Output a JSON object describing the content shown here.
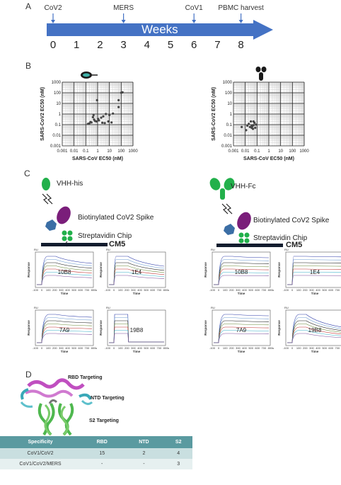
{
  "panels": {
    "a": "A",
    "b": "B",
    "c": "C",
    "d": "D"
  },
  "timeline": {
    "axis_label": "Weeks",
    "week_numbers": [
      "0",
      "1",
      "2",
      "3",
      "4",
      "5",
      "6",
      "7",
      "8"
    ],
    "events": [
      {
        "label": "CoV2",
        "week": 0
      },
      {
        "label": "MERS",
        "week": 3
      },
      {
        "label": "CoV1",
        "week": 6
      },
      {
        "label": "PBMC harvest",
        "week": 8
      }
    ],
    "bar_color": "#4472c4"
  },
  "chart_data": [
    {
      "type": "scatter",
      "xlabel": "SARS-CoV EC50 (nM)",
      "ylabel": "SARS-CoV2 EC50 (nM)",
      "xscale": "log",
      "yscale": "log",
      "xlim": [
        0.001,
        1000
      ],
      "ylim": [
        0.001,
        1000
      ],
      "xticks": [
        "0.001",
        "0.01",
        "0.1",
        "1",
        "10",
        "100",
        "1000"
      ],
      "yticks": [
        "0.001",
        "0.01",
        "0.1",
        "1",
        "10",
        "100",
        "1000"
      ],
      "grid": true,
      "points": [
        [
          0.15,
          0.12
        ],
        [
          0.2,
          0.13
        ],
        [
          0.25,
          0.18
        ],
        [
          0.3,
          0.16
        ],
        [
          0.4,
          0.5
        ],
        [
          0.45,
          0.8
        ],
        [
          0.5,
          0.3
        ],
        [
          0.6,
          0.22
        ],
        [
          0.8,
          0.2
        ],
        [
          0.9,
          20
        ],
        [
          1.1,
          0.35
        ],
        [
          1.3,
          0.25
        ],
        [
          2,
          0.45
        ],
        [
          2.5,
          0.15
        ],
        [
          3,
          0.6
        ],
        [
          4,
          0.14
        ],
        [
          5,
          1
        ],
        [
          8,
          0.2
        ],
        [
          10,
          0.8
        ],
        [
          15,
          0.16
        ],
        [
          20,
          1.1
        ],
        [
          60,
          4.5
        ],
        [
          60,
          20
        ],
        [
          100,
          100
        ],
        [
          130,
          110
        ]
      ]
    },
    {
      "type": "scatter",
      "xlabel": "SARS-CoV EC50 (nM)",
      "ylabel": "SARS-CoV2 EC50 (nM)",
      "xscale": "log",
      "yscale": "log",
      "xlim": [
        0.001,
        1000
      ],
      "ylim": [
        0.001,
        1000
      ],
      "xticks": [
        "0.001",
        "0.01",
        "0.1",
        "1",
        "10",
        "100",
        "1000"
      ],
      "yticks": [
        "0.001",
        "0.01",
        "0.1",
        "1",
        "10",
        "100",
        "1000"
      ],
      "grid": true,
      "points": [
        [
          0.005,
          0.06
        ],
        [
          0.012,
          0.03
        ],
        [
          0.015,
          0.08
        ],
        [
          0.02,
          0.12
        ],
        [
          0.025,
          0.06
        ],
        [
          0.03,
          0.2
        ],
        [
          0.035,
          0.05
        ],
        [
          0.04,
          0.07
        ],
        [
          0.045,
          0.04
        ],
        [
          0.05,
          0.09
        ],
        [
          0.06,
          0.15
        ],
        [
          0.07,
          0.05
        ],
        [
          0.08,
          0.1
        ],
        [
          0.05,
          0.2
        ],
        [
          0.035,
          0.08
        ]
      ]
    }
  ],
  "schematic_left": {
    "ligand_label": "VHH-his",
    "spike_label": "Biotinylated CoV2 Spike",
    "chip_label": "Streptavidin Chip",
    "surface_label": "CM5"
  },
  "schematic_right": {
    "ligand_label": "VHH-Fc",
    "spike_label": "Biotinylated CoV2 Spike",
    "chip_label": "Streptavidin Chip",
    "surface_label": "CM5"
  },
  "sensorgram_axes": {
    "y_unit": "RU",
    "ylabel": "Response",
    "xlabel": "Time",
    "x_unit": "s",
    "xticks": [
      "-100",
      "0",
      "100",
      "200",
      "300",
      "400",
      "500",
      "600",
      "700",
      "800"
    ]
  },
  "sensorgrams_left": [
    "10B8",
    "1E4",
    "7A9",
    "19B8"
  ],
  "sensorgrams_right": [
    "10B8",
    "1E4",
    "7A9",
    "19B8"
  ],
  "structure": {
    "labels": [
      "RBD Targeting",
      "NTD Targeting",
      "S2 Targeting"
    ]
  },
  "table": {
    "headers": [
      "Specificity",
      "RBD",
      "NTD",
      "S2"
    ],
    "rows": [
      [
        "CoV1/CoV2",
        "15",
        "2",
        "4"
      ],
      [
        "CoV1/CoV2/MERS",
        "-",
        "-",
        "3"
      ]
    ]
  }
}
